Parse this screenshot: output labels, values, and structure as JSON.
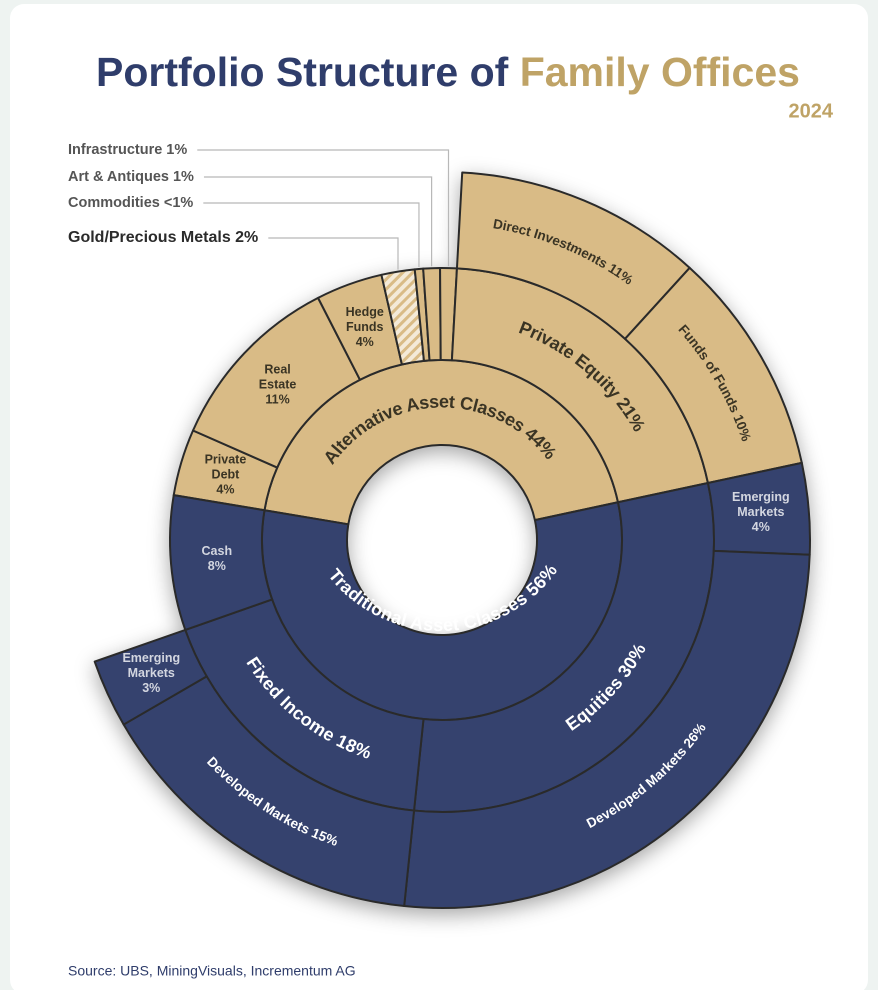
{
  "chart_data": {
    "type": "sunburst",
    "title_parts": [
      "Portfolio Structure of ",
      "Family Offices"
    ],
    "subtitle": "2024",
    "source": "Source: UBS, MiningVisuals, Incrementum AG",
    "nodes": [
      {
        "label": "Alternative Asset Classes 44%",
        "value": 44,
        "color": "#d9bb86",
        "children": [
          {
            "label": [
              "Private",
              "Debt",
              "4%"
            ],
            "value": 4
          },
          {
            "label": [
              "Real",
              "Estate",
              "11%"
            ],
            "value": 11
          },
          {
            "label": [
              "Hedge",
              "Funds",
              "4%"
            ],
            "value": 4
          },
          {
            "label": "Gold/Precious Metals 2%",
            "value": 2,
            "callout": true,
            "hatch": true
          },
          {
            "label": "Commodities <1%",
            "value": 0.5,
            "callout": true
          },
          {
            "label": "Art & Antiques 1%",
            "value": 1,
            "callout": true
          },
          {
            "label": "Infrastructure 1%",
            "value": 1,
            "callout": true
          },
          {
            "label": "Private Equity 21%",
            "value": 21,
            "children": [
              {
                "label": "Direct Investments 11%",
                "value": 11
              },
              {
                "label": "Funds of Funds 10%",
                "value": 10
              }
            ]
          }
        ]
      },
      {
        "label": "Traditional Asset Classes 56%",
        "value": 56,
        "color": "#34426e",
        "children": [
          {
            "label": "Equities 30%",
            "value": 30,
            "children": [
              {
                "label": [
                  "Emerging",
                  "Markets",
                  "4%"
                ],
                "value": 4
              },
              {
                "label": "Developed Markets 26%",
                "value": 26
              }
            ]
          },
          {
            "label": "Fixed Income 18%",
            "value": 18,
            "children": [
              {
                "label": "Developed Markets 15%",
                "value": 15
              },
              {
                "label": [
                  "Emerging",
                  "Markets",
                  "3%"
                ],
                "value": 3
              }
            ]
          },
          {
            "label": [
              "Cash",
              "8%"
            ],
            "value": 8
          }
        ]
      }
    ]
  }
}
